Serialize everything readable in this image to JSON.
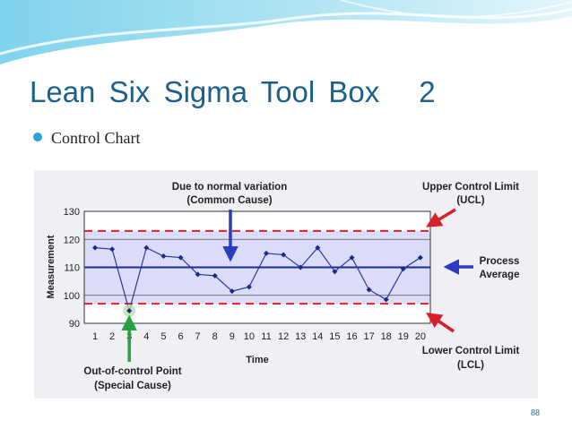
{
  "slide": {
    "title": "Lean  Six  Sigma  Tool  Box",
    "title_number": "2",
    "bullet": "Control Chart",
    "page_number": "88"
  },
  "colors": {
    "title": "#1b5f8c",
    "bullet_dot": "#2aa3d6",
    "limit_line": "#e0222a",
    "average_line": "#1a2a9a",
    "data_line": "#2a3a9a",
    "band_fill": "#dcdcf8",
    "arrow_blue": "#2a3cc0",
    "arrow_red": "#d8202a",
    "arrow_green": "#2aa040"
  },
  "chart_data": {
    "type": "line",
    "xlabel": "Time",
    "ylabel": "Measurement",
    "x": [
      1,
      2,
      3,
      4,
      5,
      6,
      7,
      8,
      9,
      10,
      11,
      12,
      13,
      14,
      15,
      16,
      17,
      18,
      19,
      20
    ],
    "series": [
      {
        "values": [
          117,
          116.5,
          94.5,
          117,
          114,
          113.5,
          107.5,
          107,
          101.5,
          103,
          115,
          114.5,
          110,
          117,
          108.5,
          113.5,
          102,
          98.5,
          109.5,
          113.5
        ]
      }
    ],
    "ylim": [
      90,
      130
    ],
    "yticks": [
      90,
      100,
      110,
      120,
      130
    ],
    "ucl": 123,
    "lcl": 97,
    "average": 110,
    "outlier_x": 3,
    "annotations": {
      "common_cause_line1": "Due to normal variation",
      "common_cause_line2": "(Common Cause)",
      "ucl_line1": "Upper Control Limit",
      "ucl_line2": "(UCL)",
      "process_line1": "Process",
      "process_line2": "Average",
      "lcl_line1": "Lower Control Limit",
      "lcl_line2": "(LCL)",
      "special_line1": "Out-of-control Point",
      "special_line2": "(Special Cause)"
    }
  }
}
